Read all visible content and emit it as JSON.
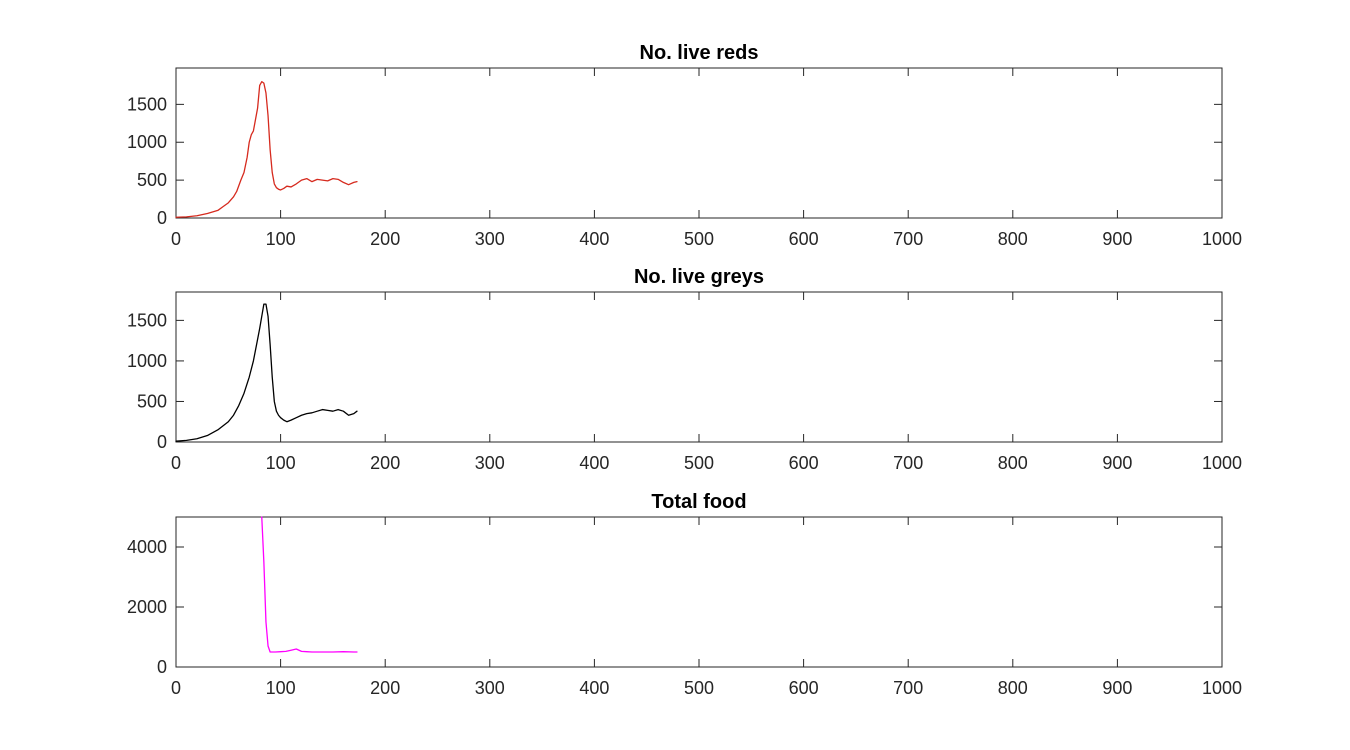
{
  "chart_data": [
    {
      "type": "line",
      "title": "No. live reds",
      "xlabel": "",
      "ylabel": "",
      "xlim": [
        0,
        1000
      ],
      "ylim": [
        0,
        1980
      ],
      "xticks": [
        0,
        100,
        200,
        300,
        400,
        500,
        600,
        700,
        800,
        900,
        1000
      ],
      "yticks": [
        0,
        500,
        1000,
        1500
      ],
      "grid": false,
      "series": [
        {
          "color": "#d62a1e",
          "x": [
            0,
            10,
            20,
            30,
            40,
            45,
            50,
            55,
            58,
            62,
            65,
            68,
            70,
            72,
            74,
            76,
            78,
            80,
            82,
            84,
            86,
            88,
            90,
            92,
            94,
            96,
            98,
            100,
            103,
            106,
            110,
            115,
            120,
            125,
            130,
            135,
            140,
            145,
            150,
            155,
            160,
            165,
            170,
            173
          ],
          "y": [
            10,
            15,
            30,
            60,
            100,
            150,
            200,
            280,
            350,
            500,
            600,
            800,
            1000,
            1100,
            1150,
            1300,
            1450,
            1750,
            1800,
            1780,
            1650,
            1350,
            900,
            600,
            450,
            400,
            380,
            370,
            390,
            420,
            410,
            450,
            500,
            520,
            480,
            510,
            500,
            490,
            520,
            510,
            470,
            440,
            470,
            480
          ]
        }
      ]
    },
    {
      "type": "line",
      "title": "No. live greys",
      "xlabel": "",
      "ylabel": "",
      "xlim": [
        0,
        1000
      ],
      "ylim": [
        0,
        1850
      ],
      "xticks": [
        0,
        100,
        200,
        300,
        400,
        500,
        600,
        700,
        800,
        900,
        1000
      ],
      "yticks": [
        0,
        500,
        1000,
        1500
      ],
      "grid": false,
      "series": [
        {
          "color": "#000000",
          "x": [
            0,
            10,
            20,
            30,
            40,
            50,
            55,
            60,
            65,
            70,
            74,
            77,
            80,
            82,
            84,
            86,
            88,
            90,
            92,
            94,
            96,
            98,
            100,
            103,
            106,
            110,
            115,
            120,
            125,
            130,
            135,
            140,
            145,
            150,
            155,
            160,
            165,
            170,
            173
          ],
          "y": [
            10,
            20,
            40,
            80,
            150,
            250,
            330,
            450,
            600,
            800,
            1000,
            1200,
            1400,
            1550,
            1700,
            1700,
            1550,
            1200,
            800,
            500,
            380,
            330,
            300,
            270,
            250,
            270,
            300,
            330,
            350,
            360,
            380,
            400,
            390,
            380,
            400,
            380,
            330,
            350,
            380
          ]
        }
      ]
    },
    {
      "type": "line",
      "title": "Total food",
      "xlabel": "",
      "ylabel": "",
      "xlim": [
        0,
        1000
      ],
      "ylim": [
        0,
        5000
      ],
      "xticks": [
        0,
        100,
        200,
        300,
        400,
        500,
        600,
        700,
        800,
        900,
        1000
      ],
      "yticks": [
        0,
        2000,
        4000
      ],
      "grid": false,
      "series": [
        {
          "color": "#ff00ff",
          "x": [
            82,
            84,
            86,
            88,
            90,
            95,
            100,
            105,
            110,
            115,
            120,
            125,
            130,
            140,
            150,
            160,
            170,
            173
          ],
          "y": [
            5000,
            3500,
            1500,
            700,
            500,
            500,
            510,
            520,
            560,
            600,
            520,
            510,
            500,
            500,
            500,
            510,
            500,
            500
          ]
        }
      ]
    }
  ]
}
